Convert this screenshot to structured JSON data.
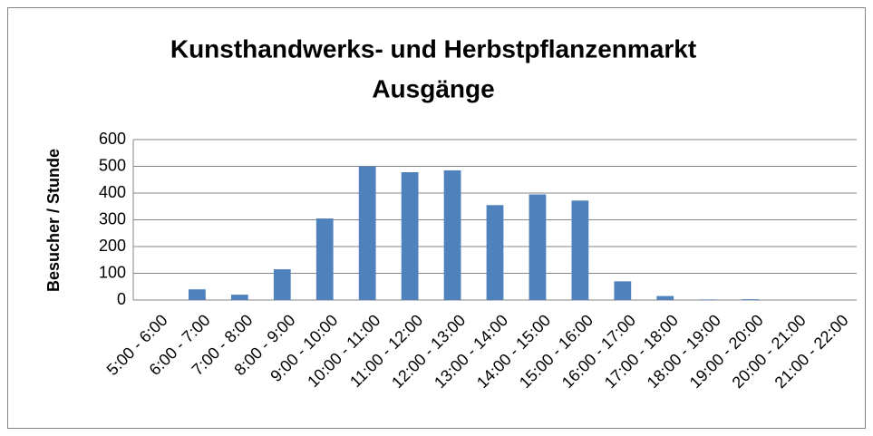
{
  "chart_data": {
    "type": "bar",
    "title": [
      "Kunsthandwerks- und Herbstpflanzenmarkt",
      "Ausgänge"
    ],
    "y_label": "Besucher / Stunde",
    "categories": [
      "5:00 - 6:00",
      "6:00 - 7:00",
      "7:00 - 8:00",
      "8:00 - 9:00",
      "9:00 - 10:00",
      "10:00 - 11:00",
      "11:00 - 12:00",
      "12:00 - 13:00",
      "13:00 - 14:00",
      "14:00 - 15:00",
      "15:00 - 16:00",
      "16:00 - 17:00",
      "17:00 - 18:00",
      "18:00 - 19:00",
      "19:00 - 20:00",
      "20:00 - 21:00",
      "21:00 - 22:00"
    ],
    "values": [
      0,
      40,
      20,
      115,
      305,
      500,
      478,
      485,
      355,
      395,
      372,
      70,
      15,
      2,
      3,
      0,
      0
    ],
    "color": "#4f81bd",
    "ylim": [
      0,
      600
    ],
    "yticks": [
      0,
      100,
      200,
      300,
      400,
      500,
      600
    ],
    "grid": true
  }
}
